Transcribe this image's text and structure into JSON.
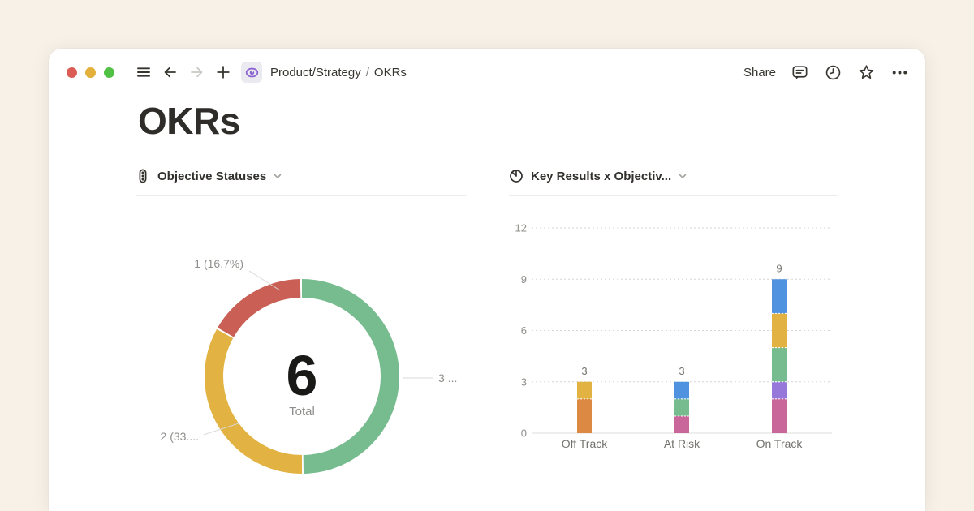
{
  "topbar": {
    "breadcrumb": {
      "parent": "Product/Strategy",
      "separator": "/",
      "current": "OKRs"
    },
    "share_label": "Share",
    "icons": [
      "traffic-light-red",
      "traffic-light-yellow",
      "traffic-light-green",
      "hamburger-menu",
      "back-arrow",
      "forward-arrow",
      "plus",
      "page-eye",
      "comments",
      "updates-clock",
      "favorite-star",
      "more-options"
    ]
  },
  "page": {
    "title": "OKRs"
  },
  "colors": {
    "background": "#F7F1E7",
    "card": "#FFFFFF",
    "text_dark": "#37352F",
    "text_gray": "#8F8E8B",
    "donut_green": "#76BC8E",
    "donut_yellow": "#E2B343",
    "donut_red": "#CA5F55",
    "bar_orange": "#DC8A43",
    "bar_yellow": "#E2B343",
    "bar_pink": "#C9679B",
    "bar_green": "#76BC8E",
    "bar_blue": "#4F92DF",
    "bar_purple": "#9678DB"
  },
  "chart_data": [
    {
      "type": "pie",
      "subtype": "donut",
      "title": "Objective Statuses",
      "start": "top",
      "direction": "clockwise",
      "total_value": 6,
      "center_value": "6",
      "center_label": "Total",
      "slices": [
        {
          "name": "green-slice",
          "value": 3,
          "callout_label": "3 ...",
          "color": "#76BC8E"
        },
        {
          "name": "yellow-slice",
          "value": 2,
          "callout_label": "2 (33....",
          "color": "#E2B343"
        },
        {
          "name": "red-slice",
          "value": 1,
          "callout_label": "1 (16.7%)",
          "color": "#CA5F55"
        }
      ]
    },
    {
      "type": "bar",
      "stacked": true,
      "title": "Key Results x Objectiv...",
      "categories": [
        "Off Track",
        "At Risk",
        "On Track"
      ],
      "totals": [
        3,
        3,
        9
      ],
      "yticks": [
        0,
        3,
        6,
        9,
        12
      ],
      "ylim": [
        0,
        12
      ],
      "grid": "dotted-horizontal",
      "bars": [
        {
          "category": "Off Track",
          "total": 3,
          "segments": [
            {
              "value": 2,
              "color": "#DC8A43"
            },
            {
              "value": 1,
              "color": "#E2B343"
            }
          ]
        },
        {
          "category": "At Risk",
          "total": 3,
          "segments": [
            {
              "value": 1,
              "color": "#C9679B"
            },
            {
              "value": 1,
              "color": "#76BC8E"
            },
            {
              "value": 1,
              "color": "#4F92DF"
            }
          ]
        },
        {
          "category": "On Track",
          "total": 9,
          "segments": [
            {
              "value": 2,
              "color": "#C9679B"
            },
            {
              "value": 1,
              "color": "#9678DB"
            },
            {
              "value": 2,
              "color": "#76BC8E"
            },
            {
              "value": 2,
              "color": "#E2B343"
            },
            {
              "value": 2,
              "color": "#4F92DF"
            }
          ]
        }
      ]
    }
  ]
}
